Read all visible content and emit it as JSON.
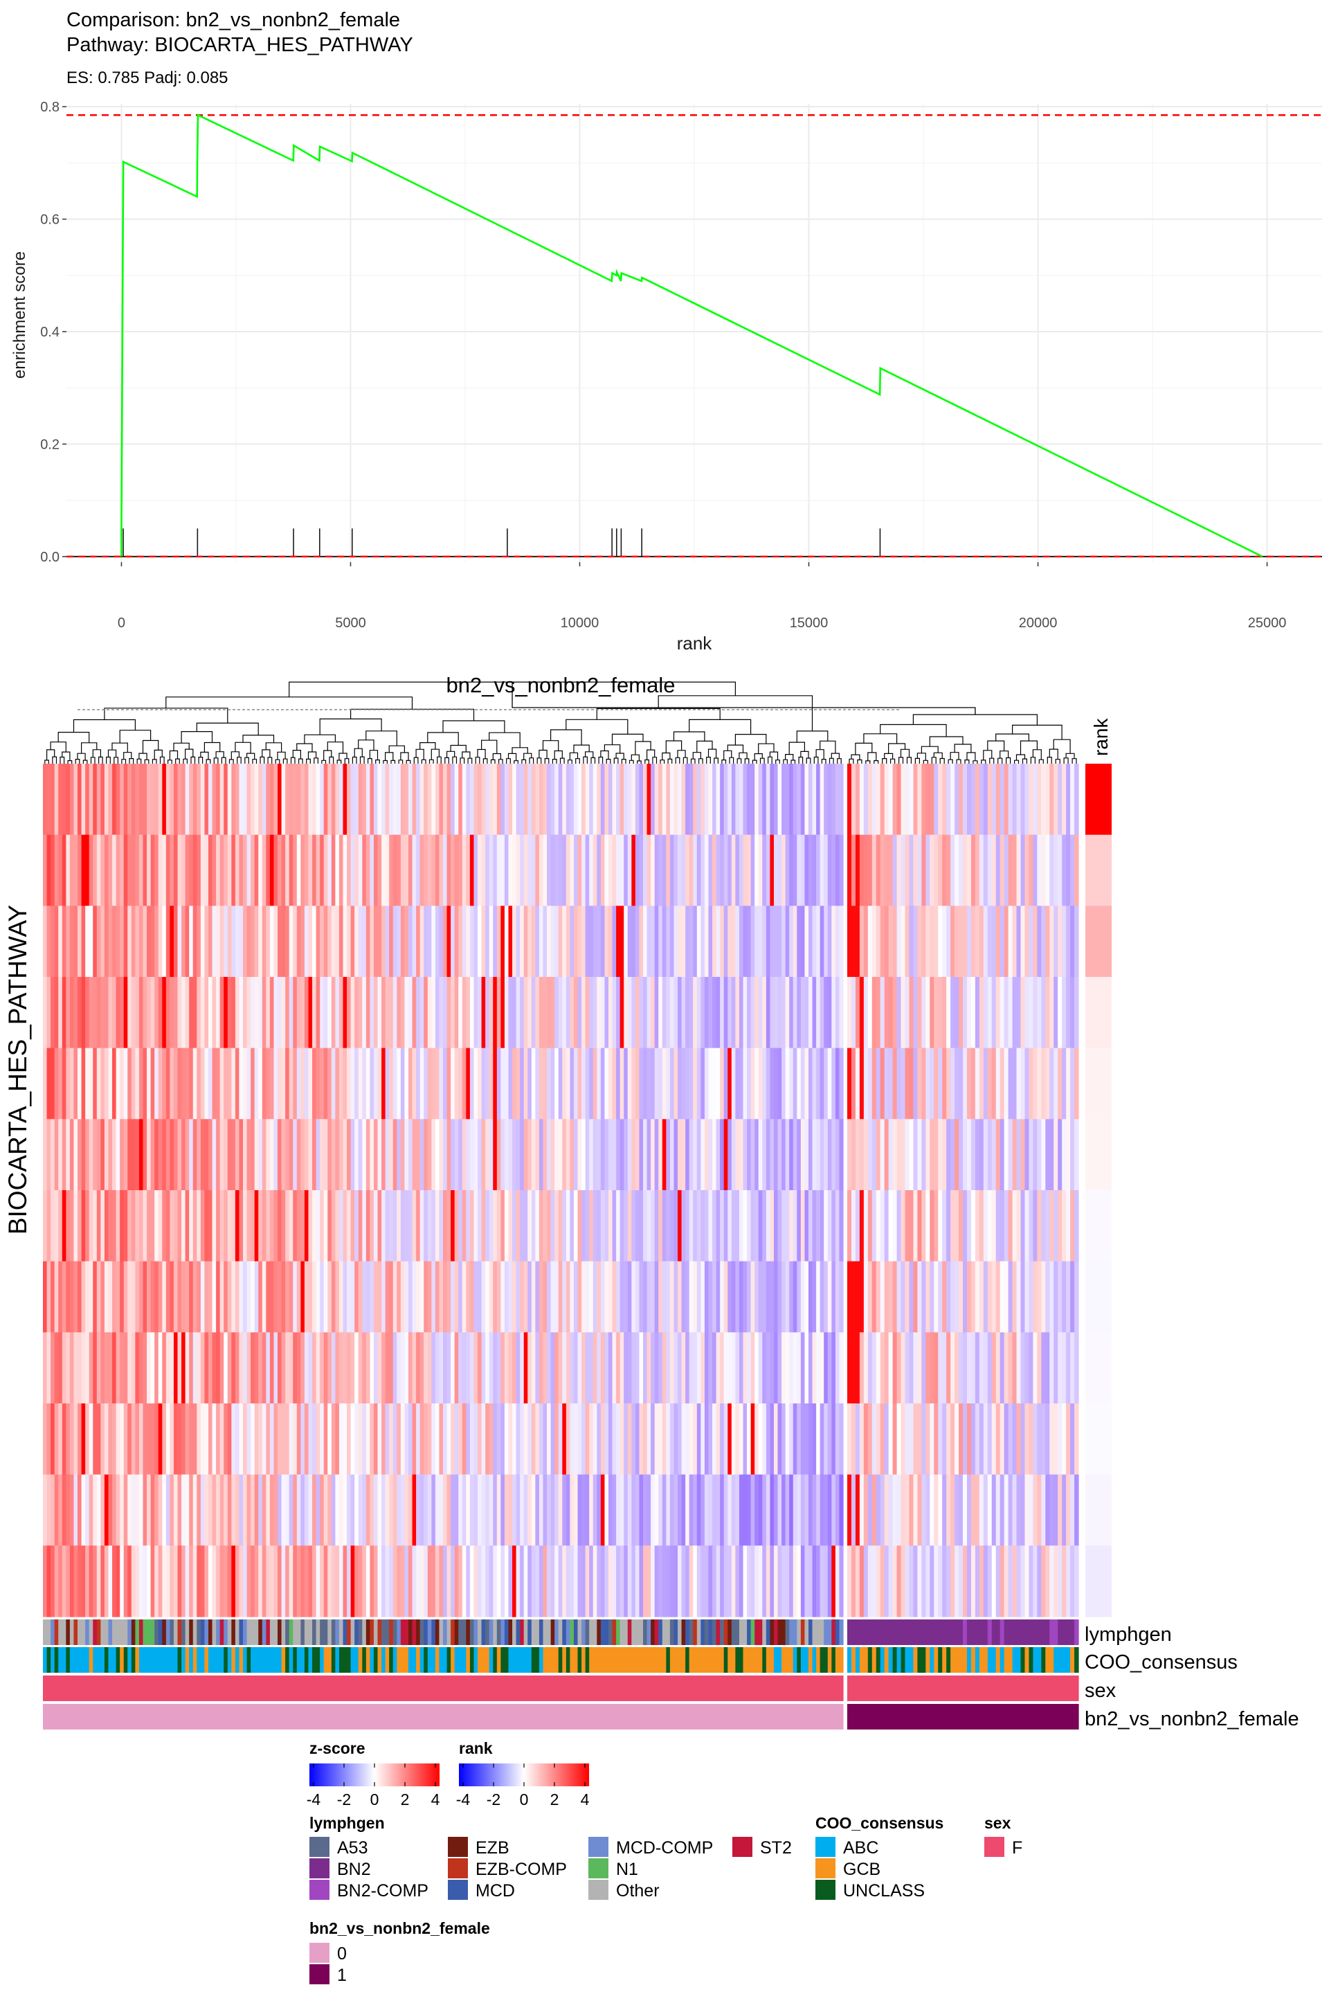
{
  "colors": {
    "curve": "#00ff00",
    "es_line": "#ff0000",
    "zero_line": "#ff0000",
    "hit": "#1a1a1a",
    "grid": "#ebebeb",
    "heat_low": "#0000ff",
    "heat_mid": "#ffffff",
    "heat_high": "#ff0000"
  },
  "gsea": {
    "title_line1": "Comparison: bn2_vs_nonbn2_female",
    "title_line2": "Pathway: BIOCARTA_HES_PATHWAY",
    "subtitle": "ES: 0.785 Padj: 0.085"
  },
  "heatmap": {
    "title": "bn2_vs_nonbn2_female",
    "row_title": "BIOCARTA_HES_PATHWAY",
    "rank_label": "rank",
    "n_genes": 12,
    "n_samples_group0": 208,
    "n_samples_group1": 56,
    "annotation_labels": [
      "lymphgen",
      "COO_consensus",
      "sex",
      "bn2_vs_nonbn2_female"
    ]
  },
  "legends": {
    "zscore": {
      "title": "z-score",
      "ticks": [
        "-4",
        "-2",
        "0",
        "2",
        "4"
      ]
    },
    "rank": {
      "title": "rank",
      "ticks": [
        "-4",
        "-2",
        "0",
        "2",
        "4"
      ]
    },
    "lymphgen": {
      "title": "lymphgen",
      "items": [
        {
          "label": "A53",
          "color": "#5a6a8c"
        },
        {
          "label": "BN2",
          "color": "#7b2d8e"
        },
        {
          "label": "BN2-COMP",
          "color": "#a046c0"
        },
        {
          "label": "EZB",
          "color": "#721c10"
        },
        {
          "label": "EZB-COMP",
          "color": "#c0331c"
        },
        {
          "label": "MCD",
          "color": "#3a5cad"
        },
        {
          "label": "MCD-COMP",
          "color": "#6f8bd2"
        },
        {
          "label": "N1",
          "color": "#5cb85c"
        },
        {
          "label": "Other",
          "color": "#b3b3b3"
        },
        {
          "label": "ST2",
          "color": "#c4173a"
        }
      ]
    },
    "coo": {
      "title": "COO_consensus",
      "items": [
        {
          "label": "ABC",
          "color": "#00aeef"
        },
        {
          "label": "GCB",
          "color": "#f7941d"
        },
        {
          "label": "UNCLASS",
          "color": "#0a5c1e"
        }
      ]
    },
    "sex": {
      "title": "sex",
      "items": [
        {
          "label": "F",
          "color": "#ee4a6e"
        }
      ]
    },
    "group": {
      "title": "bn2_vs_nonbn2_female",
      "items": [
        {
          "label": "0",
          "color": "#e6a0c8"
        },
        {
          "label": "1",
          "color": "#7a0058"
        }
      ]
    }
  },
  "chart_data": [
    {
      "type": "line",
      "title": "Comparison: bn2_vs_nonbn2_female\nPathway: BIOCARTA_HES_PATHWAY",
      "subtitle": "ES: 0.785 Padj: 0.085",
      "xlabel": "rank",
      "ylabel": "enrichment score",
      "xlim": [
        -1200,
        26200
      ],
      "ylim": [
        -0.01,
        0.805
      ],
      "x_ticks": [
        0,
        5000,
        10000,
        15000,
        20000,
        25000
      ],
      "y_ticks": [
        0.0,
        0.2,
        0.4,
        0.6,
        0.8
      ],
      "y_tick_labels": [
        "0.0",
        "0.2",
        "0.4",
        "0.6",
        "0.8"
      ],
      "grid": true,
      "series": [
        {
          "x": [
            0,
            0,
            40,
            1650,
            1655,
            1670,
            3750,
            3760,
            4320,
            4330,
            5030,
            5040,
            10700,
            10710,
            10800,
            10810,
            10900,
            10910,
            11350,
            11360,
            16550,
            16560,
            24900
          ],
          "y": [
            0.0,
            0.04,
            0.702,
            0.64,
            0.7,
            0.785,
            0.704,
            0.731,
            0.704,
            0.729,
            0.703,
            0.718,
            0.49,
            0.504,
            0.5,
            0.506,
            0.49,
            0.504,
            0.49,
            0.496,
            0.288,
            0.335,
            0.0
          ]
        }
      ],
      "enrichment_score_line": 0.785,
      "zero_line": 0.0,
      "hit_ranks": [
        40,
        1660,
        3755,
        4325,
        5035,
        8420,
        10705,
        10805,
        10905,
        11355,
        16555
      ]
    },
    {
      "type": "heatmap",
      "title": "bn2_vs_nonbn2_female",
      "ylabel": "BIOCARTA_HES_PATHWAY",
      "rows": 12,
      "columns_group0": 208,
      "columns_group1": 56,
      "color_scale": {
        "min": -4,
        "mid": 0,
        "max": 4,
        "colors": [
          "#0000ff",
          "#ffffff",
          "#ff0000"
        ]
      },
      "rank_column": [
        4.0,
        0.5,
        0.9,
        0.15,
        0.1,
        0.08,
        -0.05,
        -0.07,
        -0.05,
        -0.04,
        -0.1,
        -0.25
      ],
      "row_means": [
        0.3,
        0.4,
        0.2,
        0.25,
        0.2,
        0.1,
        0.3,
        0.2,
        0.3,
        0.2,
        -0.3,
        0.2
      ],
      "annotations": [
        "lymphgen",
        "COO_consensus",
        "sex",
        "bn2_vs_nonbn2_female"
      ]
    }
  ]
}
